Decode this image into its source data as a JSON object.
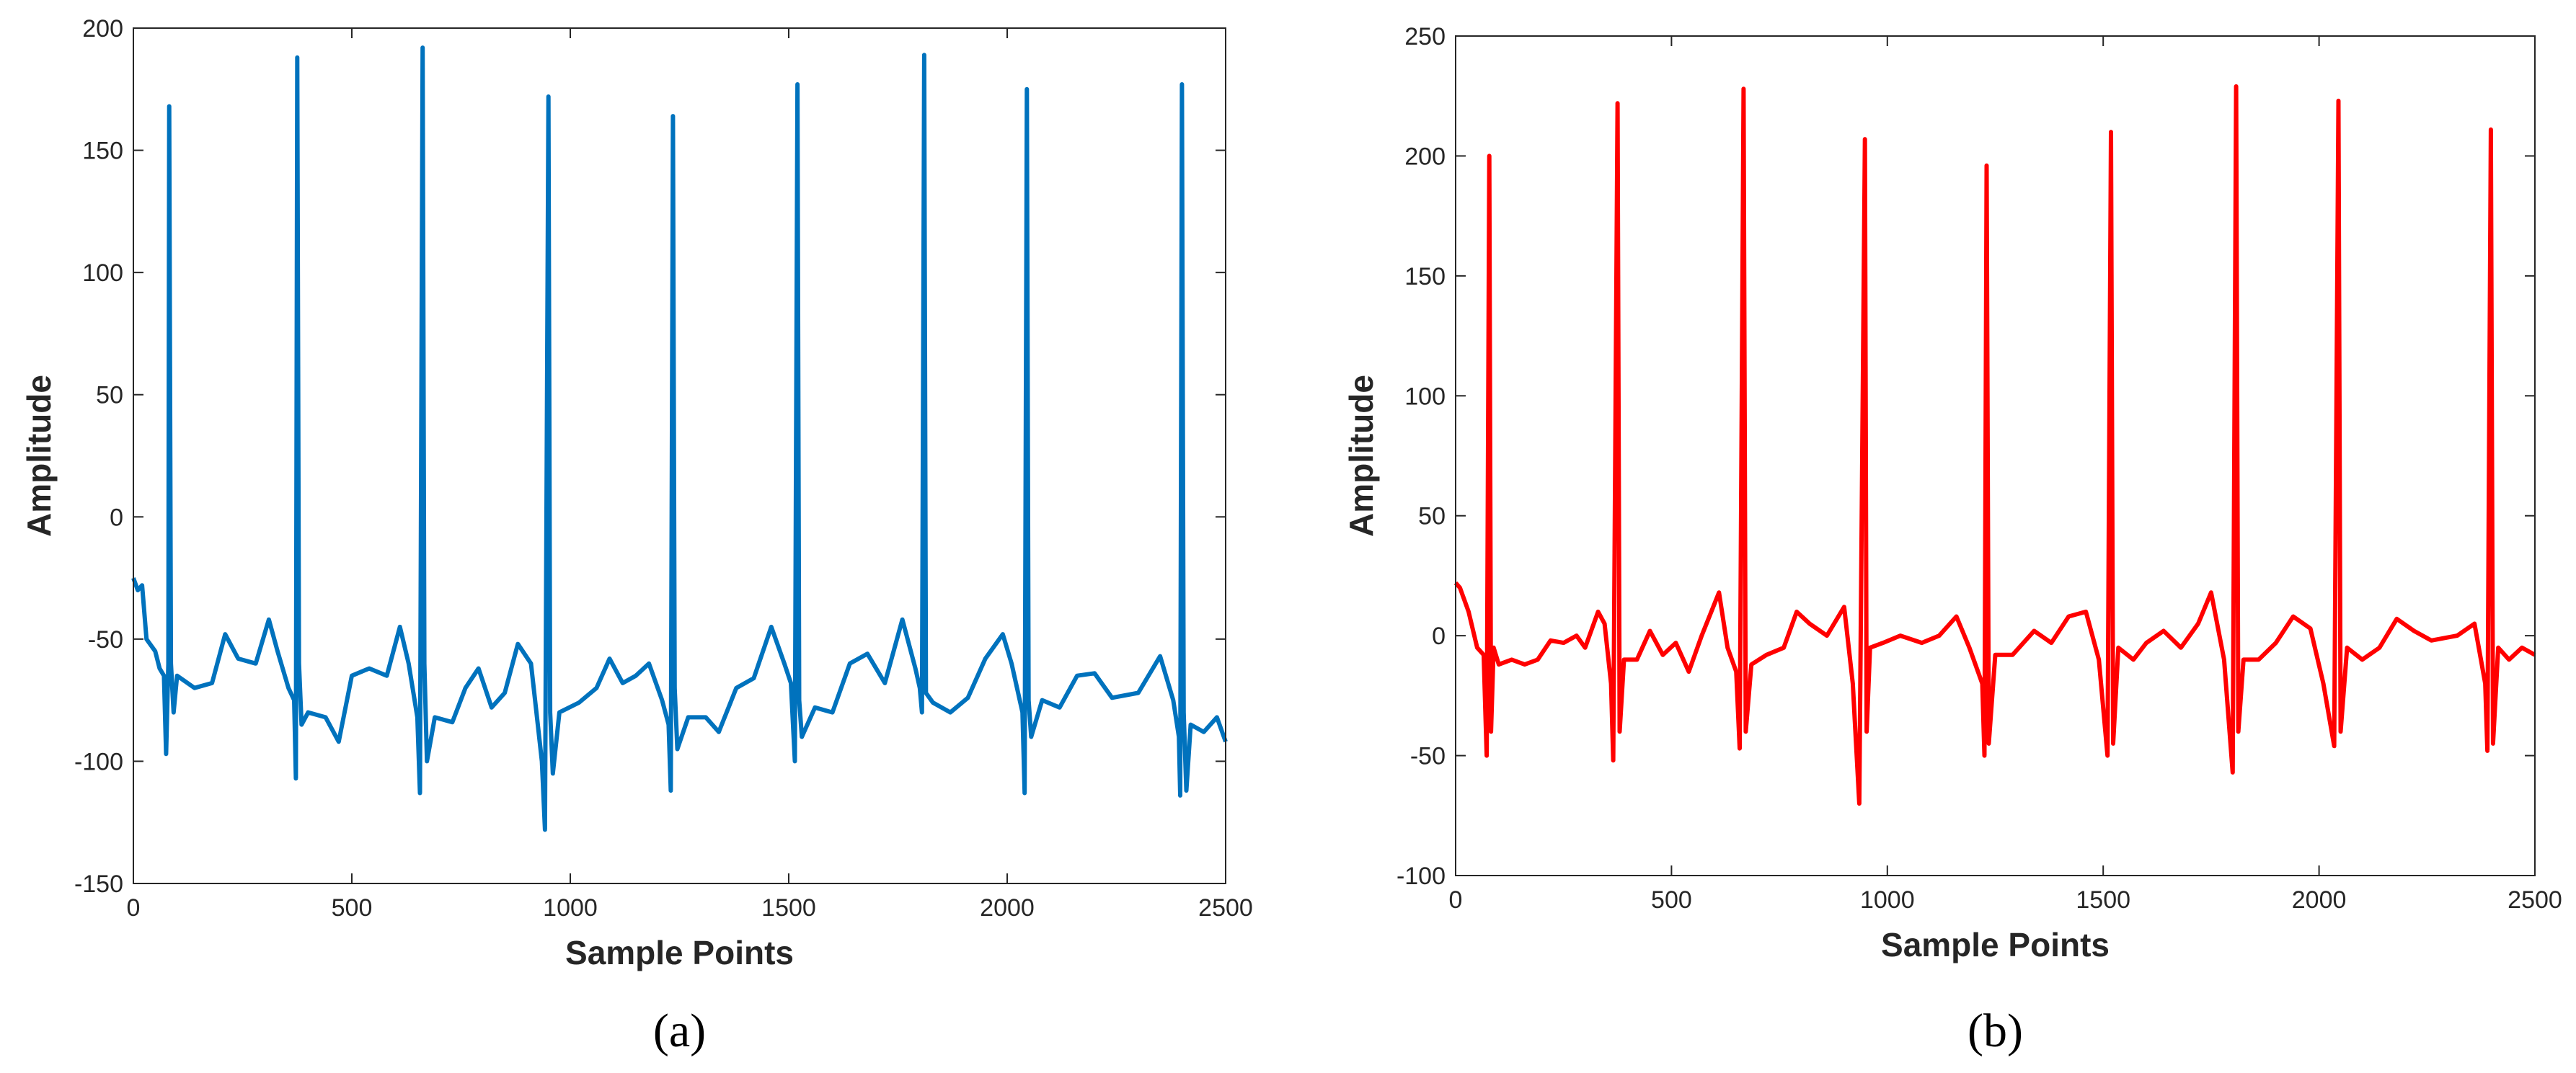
{
  "chart_data": [
    {
      "type": "line",
      "caption": "(a)",
      "xlabel": "Sample Points",
      "ylabel": "Amplitude",
      "color": "#0072BD",
      "xlim": [
        0,
        2500
      ],
      "xticks": [
        0,
        500,
        1000,
        1500,
        2000,
        2500
      ],
      "ylim": [
        -150,
        200
      ],
      "yticks": [
        -150,
        -100,
        -50,
        0,
        50,
        100,
        150,
        200
      ],
      "x": [
        0,
        10,
        20,
        30,
        50,
        60,
        70,
        75,
        80,
        82,
        86,
        92,
        100,
        140,
        180,
        210,
        240,
        280,
        310,
        330,
        355,
        368,
        372,
        375,
        379,
        385,
        400,
        440,
        470,
        500,
        540,
        580,
        610,
        630,
        650,
        656,
        662,
        666,
        672,
        690,
        730,
        760,
        790,
        820,
        850,
        880,
        910,
        935,
        942,
        950,
        954,
        960,
        975,
        1020,
        1060,
        1090,
        1120,
        1150,
        1180,
        1210,
        1225,
        1230,
        1235,
        1239,
        1245,
        1270,
        1310,
        1340,
        1380,
        1420,
        1460,
        1490,
        1505,
        1514,
        1520,
        1524,
        1530,
        1560,
        1600,
        1640,
        1680,
        1720,
        1760,
        1790,
        1800,
        1805,
        1810,
        1814,
        1830,
        1870,
        1910,
        1950,
        1990,
        2010,
        2035,
        2040,
        2045,
        2049,
        2055,
        2080,
        2120,
        2160,
        2200,
        2240,
        2300,
        2350,
        2380,
        2393,
        2396,
        2400,
        2404,
        2410,
        2420,
        2450,
        2480,
        2500
      ],
      "values": [
        -25,
        -30,
        -28,
        -50,
        -55,
        -62,
        -65,
        -97,
        -60,
        168,
        -60,
        -80,
        -65,
        -70,
        -68,
        -48,
        -58,
        -60,
        -42,
        -55,
        -70,
        -75,
        -107,
        188,
        -60,
        -85,
        -80,
        -82,
        -92,
        -65,
        -62,
        -65,
        -45,
        -60,
        -82,
        -113,
        192,
        -60,
        -100,
        -82,
        -84,
        -70,
        -62,
        -78,
        -72,
        -52,
        -60,
        -100,
        -128,
        172,
        -80,
        -105,
        -80,
        -76,
        -70,
        -58,
        -68,
        -65,
        -60,
        -75,
        -85,
        -112,
        164,
        -70,
        -95,
        -82,
        -82,
        -88,
        -70,
        -66,
        -45,
        -60,
        -68,
        -100,
        177,
        -75,
        -90,
        -78,
        -80,
        -60,
        -56,
        -68,
        -42,
        -62,
        -70,
        -80,
        189,
        -72,
        -76,
        -80,
        -74,
        -58,
        -48,
        -60,
        -80,
        -113,
        175,
        -75,
        -90,
        -75,
        -78,
        -65,
        -64,
        -74,
        -72,
        -57,
        -75,
        -90,
        -114,
        177,
        -80,
        -112,
        -85,
        -88,
        -82,
        -92
      ]
    },
    {
      "type": "line",
      "caption": "(b)",
      "xlabel": "Sample Points",
      "ylabel": "Amplitude",
      "color": "#FF0000",
      "xlim": [
        0,
        2500
      ],
      "xticks": [
        0,
        500,
        1000,
        1500,
        2000,
        2500
      ],
      "ylim": [
        -100,
        250
      ],
      "yticks": [
        -100,
        -50,
        0,
        50,
        100,
        150,
        200,
        250
      ],
      "x": [
        0,
        10,
        30,
        50,
        65,
        72,
        78,
        82,
        88,
        100,
        130,
        160,
        190,
        220,
        250,
        280,
        300,
        330,
        345,
        360,
        365,
        375,
        380,
        390,
        420,
        450,
        480,
        510,
        540,
        570,
        610,
        630,
        650,
        658,
        667,
        672,
        685,
        720,
        760,
        790,
        820,
        860,
        900,
        920,
        935,
        948,
        952,
        960,
        990,
        1030,
        1080,
        1120,
        1160,
        1190,
        1220,
        1225,
        1230,
        1235,
        1250,
        1290,
        1340,
        1380,
        1420,
        1460,
        1490,
        1510,
        1518,
        1523,
        1535,
        1570,
        1600,
        1640,
        1680,
        1720,
        1750,
        1780,
        1800,
        1808,
        1813,
        1825,
        1860,
        1900,
        1940,
        1980,
        2010,
        2035,
        2045,
        2050,
        2065,
        2100,
        2140,
        2180,
        2220,
        2260,
        2320,
        2360,
        2385,
        2390,
        2398,
        2403,
        2415,
        2440,
        2470,
        2500
      ],
      "values": [
        22,
        20,
        10,
        -5,
        -8,
        -50,
        200,
        -40,
        -5,
        -12,
        -10,
        -12,
        -10,
        -2,
        -3,
        0,
        -5,
        10,
        5,
        -20,
        -52,
        222,
        -40,
        -10,
        -10,
        2,
        -8,
        -3,
        -15,
        0,
        18,
        -5,
        -15,
        -47,
        228,
        -40,
        -12,
        -8,
        -5,
        10,
        5,
        0,
        12,
        -20,
        -70,
        207,
        -40,
        -5,
        -3,
        0,
        -3,
        0,
        8,
        -5,
        -20,
        -50,
        196,
        -45,
        -8,
        -8,
        2,
        -3,
        8,
        10,
        -10,
        -50,
        210,
        -45,
        -5,
        -10,
        -3,
        2,
        -5,
        5,
        18,
        -10,
        -57,
        229,
        -40,
        -10,
        -10,
        -3,
        8,
        3,
        -20,
        -46,
        223,
        -40,
        -5,
        -10,
        -5,
        7,
        2,
        -2,
        0,
        5,
        -20,
        -48,
        211,
        -45,
        -5,
        -10,
        -5,
        -8
      ]
    }
  ]
}
